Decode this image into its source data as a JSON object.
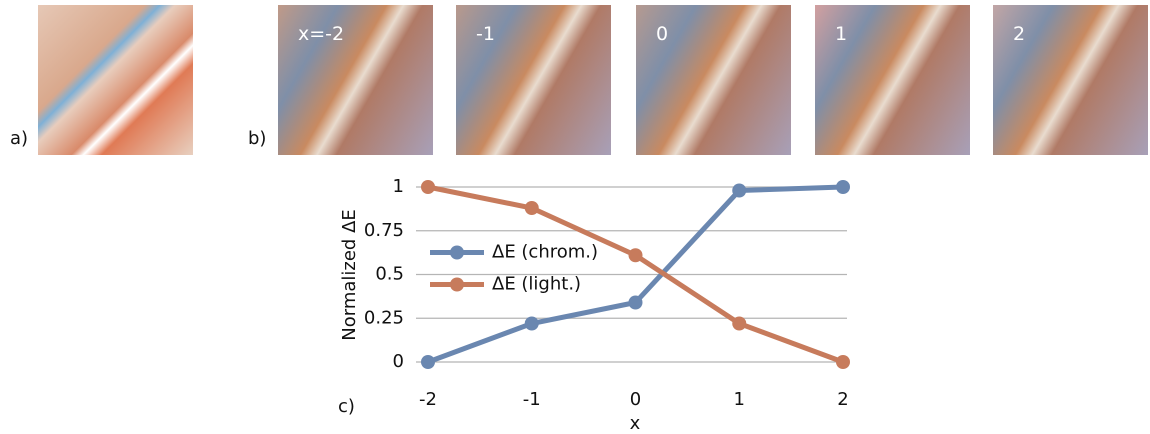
{
  "panel_labels": {
    "a": "a)",
    "b": "b)",
    "c": "c)"
  },
  "image_labels": [
    "x=-2",
    "-1",
    "0",
    "1",
    "2"
  ],
  "chart_data": {
    "type": "line",
    "xlabel": "x",
    "ylabel": "Normalized ΔE",
    "x": [
      -2,
      -1,
      0,
      1,
      2
    ],
    "series": [
      {
        "name": "ΔE (chrom.)",
        "color": "#6a87b0",
        "values": [
          0,
          0.22,
          0.34,
          0.98,
          1
        ]
      },
      {
        "name": "ΔE (light.)",
        "color": "#c77b5c",
        "values": [
          1,
          0.88,
          0.61,
          0.22,
          0
        ]
      }
    ],
    "xlim": [
      -2,
      2
    ],
    "xticks": [
      -2,
      -1,
      0,
      1,
      2
    ],
    "ylim": [
      0,
      1
    ],
    "yticks": [
      0,
      0.25,
      0.5,
      0.75,
      1
    ],
    "grid": true,
    "legend": "center left"
  }
}
